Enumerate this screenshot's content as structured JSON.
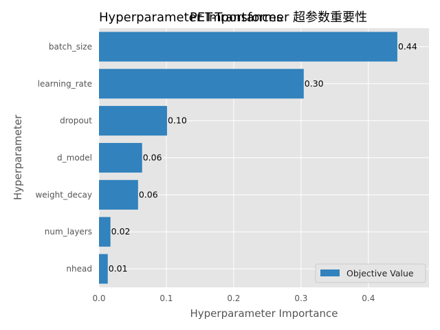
{
  "colors": {
    "bar": "#3182bd",
    "plot_bg": "#e5e5e5",
    "grid": "#ffffff"
  },
  "chart_data": {
    "type": "bar",
    "orientation": "horizontal",
    "title_overlap": [
      "Hyperparameter Importances",
      "PET-Transformer 超参数重要性"
    ],
    "xlabel": "Hyperparameter Importance",
    "ylabel": "Hyperparameter",
    "xlim": [
      0,
      0.49
    ],
    "xticks": [
      "0.0",
      "0.1",
      "0.2",
      "0.3",
      "0.4"
    ],
    "grid": true,
    "legend_position": "lower-right",
    "categories": [
      "nhead",
      "num_layers",
      "weight_decay",
      "d_model",
      "dropout",
      "learning_rate",
      "batch_size"
    ],
    "series": [
      {
        "name": "Objective Value",
        "values": [
          0.013,
          0.017,
          0.058,
          0.064,
          0.101,
          0.304,
          0.443
        ],
        "labels": [
          "0.01",
          "0.02",
          "0.06",
          "0.06",
          "0.10",
          "0.30",
          "0.44"
        ]
      }
    ]
  }
}
